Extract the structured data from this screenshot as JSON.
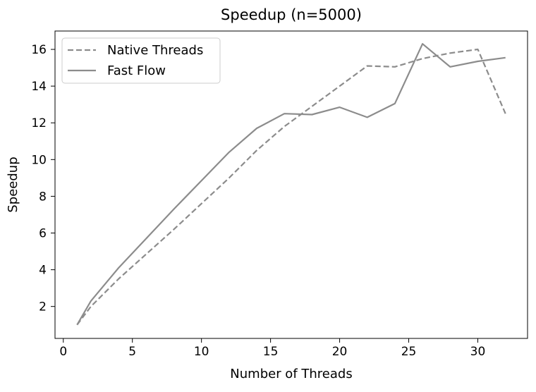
{
  "chart_data": {
    "type": "line",
    "title": "Speedup (n=5000)",
    "xlabel": "Number of Threads",
    "ylabel": "Speedup",
    "xlim": [
      -0.6,
      33.6
    ],
    "ylim": [
      0.26,
      17.0
    ],
    "xticks": [
      0,
      5,
      10,
      15,
      20,
      25,
      30
    ],
    "yticks": [
      2,
      4,
      6,
      8,
      10,
      12,
      14,
      16
    ],
    "grid": false,
    "legend_position": "top-left",
    "series": [
      {
        "name": "Native Threads",
        "style": "dashed",
        "color": "#8c8c8c",
        "x": [
          1,
          2,
          4,
          8,
          12,
          14,
          16,
          18,
          20,
          22,
          24,
          26,
          28,
          30,
          32
        ],
        "y": [
          1.0,
          2.0,
          3.5,
          6.2,
          9.0,
          10.5,
          11.8,
          12.9,
          14.0,
          15.1,
          15.05,
          15.5,
          15.8,
          16.0,
          12.5
        ]
      },
      {
        "name": "Fast Flow",
        "style": "solid",
        "color": "#8c8c8c",
        "x": [
          1,
          2,
          4,
          8,
          12,
          14,
          16,
          18,
          20,
          22,
          24,
          26,
          28,
          30,
          32
        ],
        "y": [
          1.0,
          2.3,
          4.1,
          7.3,
          10.4,
          11.7,
          12.5,
          12.45,
          12.85,
          12.3,
          13.05,
          16.3,
          15.05,
          15.35,
          15.55
        ]
      }
    ]
  }
}
